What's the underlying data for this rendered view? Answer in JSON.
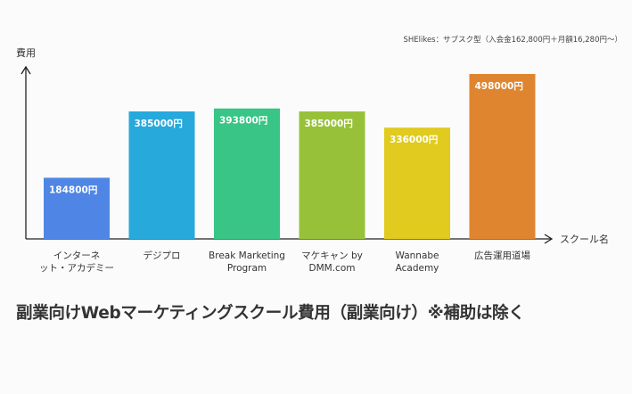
{
  "caption": "副業向けWebマーケティングスクール費用（副業向け）※補助は除く",
  "chart_data": {
    "type": "bar",
    "title": "",
    "ylabel": "費用",
    "xlabel": "スクール名",
    "annotation": "SHElikes：サブスク型（入会金162,800円＋月額16,280円〜）",
    "ylim": [
      0,
      560000
    ],
    "grid": false,
    "categories": [
      [
        "インターネ",
        "ット・アカデミー"
      ],
      [
        "デジプロ"
      ],
      [
        "Break Marketing",
        "Program"
      ],
      [
        "マケキャン by",
        "DMM.com"
      ],
      [
        "Wannabe",
        "Academy"
      ],
      [
        "広告運用道場"
      ]
    ],
    "values": [
      184800,
      385000,
      393800,
      385000,
      336000,
      498000
    ],
    "value_labels": [
      "184800円",
      "385000円",
      "393800円",
      "385000円",
      "336000円",
      "498000円"
    ],
    "colors": [
      "#4f86e6",
      "#27a9dc",
      "#38c585",
      "#98c13a",
      "#e0cb1e",
      "#e0852f"
    ]
  }
}
